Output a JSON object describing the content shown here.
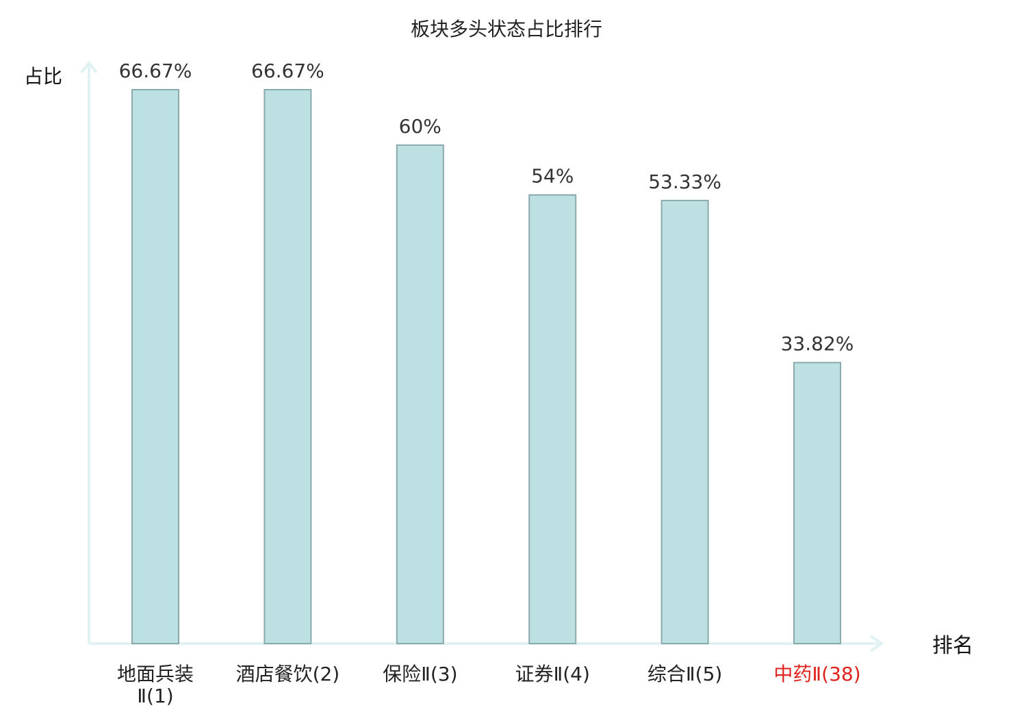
{
  "chart_data": {
    "type": "bar",
    "title": "板块多头状态占比排行",
    "ylabel": "占比",
    "xlabel": "排名",
    "categories": [
      "地面兵装Ⅱ(1)",
      "酒店餐饮(2)",
      "保险Ⅱ(3)",
      "证券Ⅱ(4)",
      "综合Ⅱ(5)",
      "中药Ⅱ(38)"
    ],
    "category_lines": [
      [
        "地面兵装",
        "Ⅱ(1)"
      ],
      [
        "酒店餐饮(2)"
      ],
      [
        "保险Ⅱ(3)"
      ],
      [
        "证券Ⅱ(4)"
      ],
      [
        "综合Ⅱ(5)"
      ],
      [
        "中药Ⅱ(38)"
      ]
    ],
    "values": [
      66.67,
      66.67,
      60,
      54,
      53.33,
      33.82
    ],
    "value_labels": [
      "66.67%",
      "66.67%",
      "60%",
      "54%",
      "53.33%",
      "33.82%"
    ],
    "highlight_index": 5,
    "ylim": [
      0,
      66.67
    ],
    "grid": false,
    "colors": {
      "bar_fill": "#bde0e3",
      "bar_stroke": "#8aa9ab",
      "axis": "#e0f2f1",
      "label": "#333333",
      "highlight": "#e0201b"
    }
  }
}
